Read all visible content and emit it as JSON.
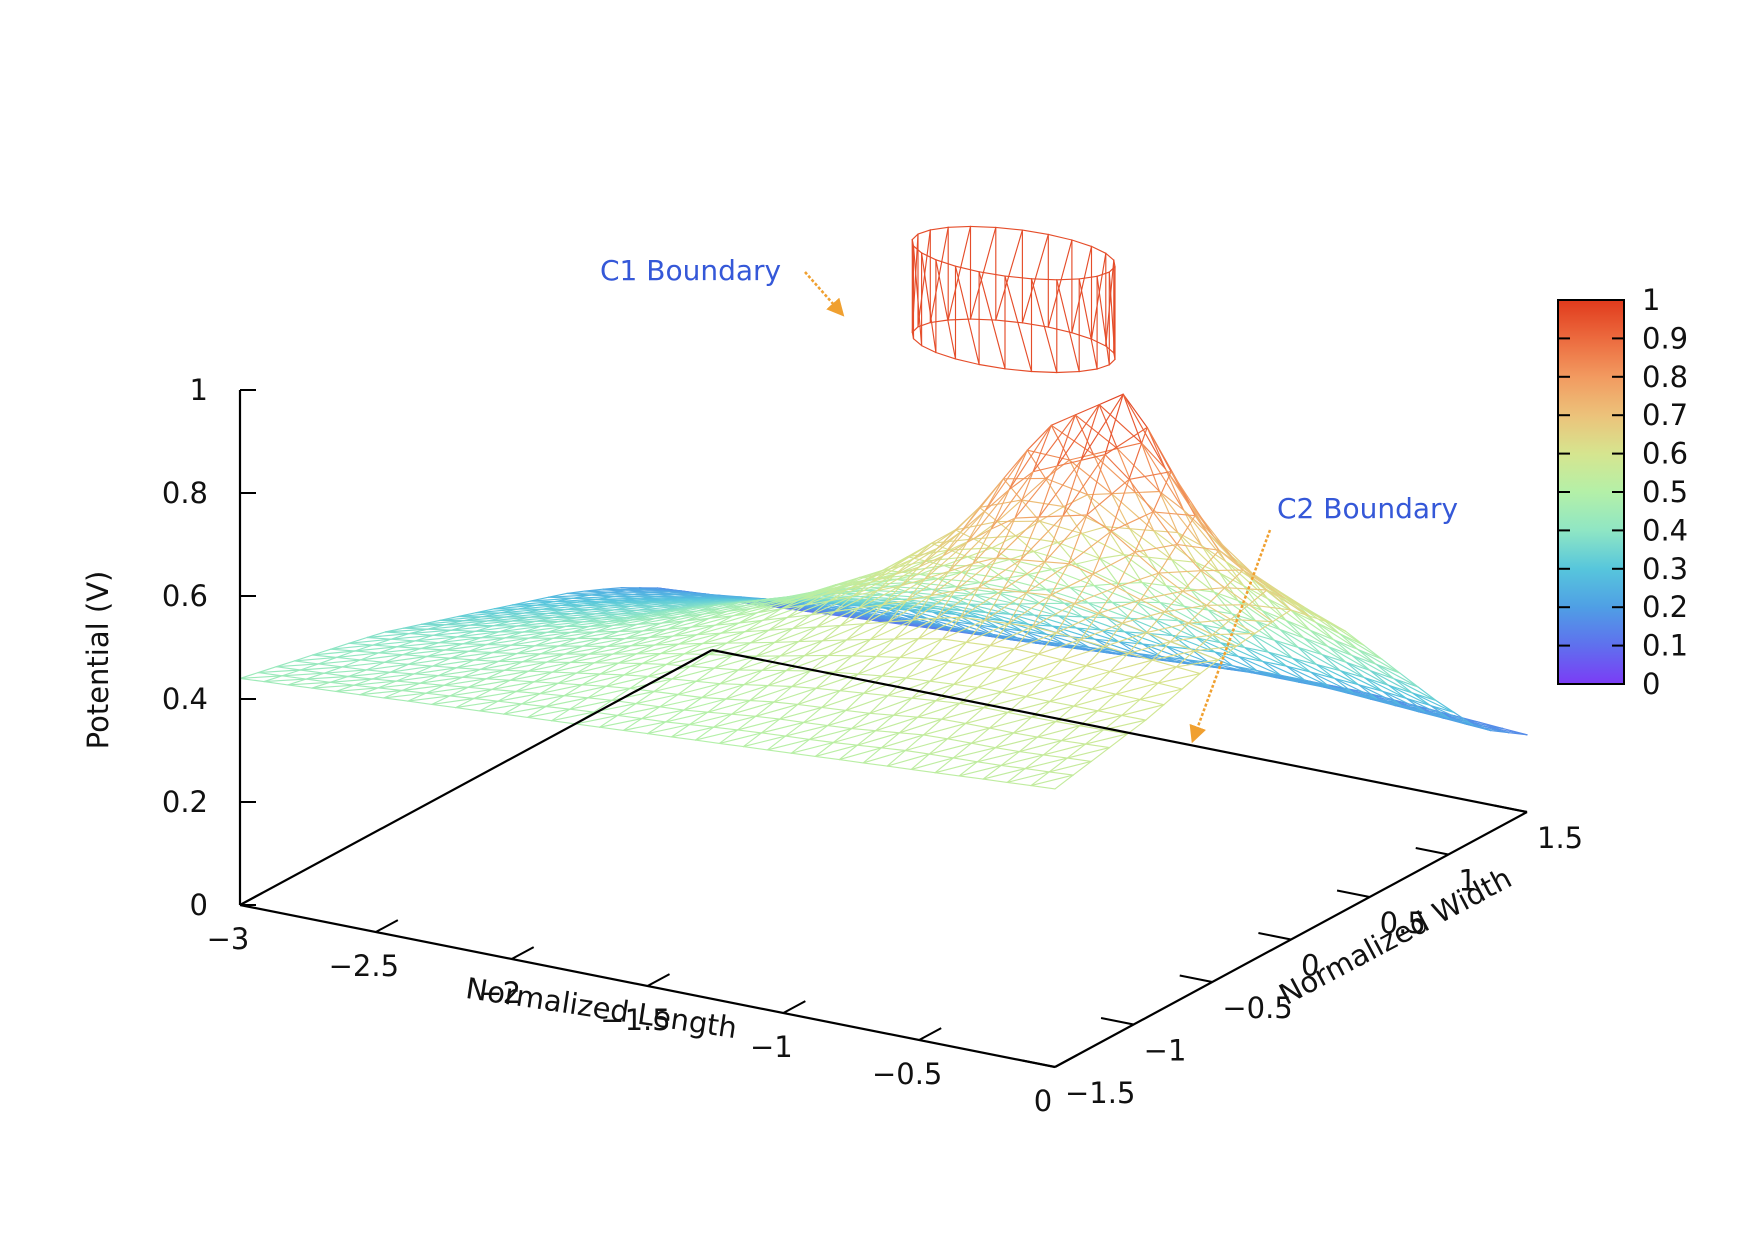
{
  "chart_data": {
    "type": "surface-wireframe",
    "xlabel": "Normalized Length",
    "ylabel": "Normalized Width",
    "zlabel": "Potential (V)",
    "xlim": [
      -3,
      0
    ],
    "ylim": [
      -1.5,
      1.5
    ],
    "zlim": [
      0,
      1
    ],
    "x_ticks": [
      "−3",
      "−2.5",
      "−2",
      "−1.5",
      "−1",
      "−0.5",
      "0"
    ],
    "y_ticks": [
      "−1.5",
      "−1",
      "−0.5",
      "0",
      "0.5",
      "1",
      "1.5"
    ],
    "z_ticks": [
      "0",
      "0.2",
      "0.4",
      "0.6",
      "0.8",
      "1"
    ],
    "colorbar": {
      "range": [
        0,
        1
      ],
      "ticks": [
        "0",
        "0.1",
        "0.2",
        "0.3",
        "0.4",
        "0.5",
        "0.6",
        "0.7",
        "0.8",
        "0.9",
        "1"
      ],
      "palette": [
        "#7b3cf5",
        "#5f70ee",
        "#4f9fe5",
        "#57c6dc",
        "#8fe6c4",
        "#b4f0a8",
        "#d6e58f",
        "#ecc27a",
        "#f29a60",
        "#ec6a3e",
        "#e03a1c"
      ]
    },
    "annotations": [
      {
        "text": "C1  Boundary",
        "target": {
          "x": -1.6,
          "y": 1.0,
          "z": 1.0
        },
        "arrow_color": "#f0a030"
      },
      {
        "text": "C2  Boundary",
        "target": {
          "x": 0.4,
          "y": -0.6,
          "z": 0.25
        },
        "arrow_color": "#f0a030"
      }
    ],
    "surface": {
      "grid_x": [
        -3.0,
        -2.7,
        -2.4,
        -2.1,
        -1.8,
        -1.5,
        -1.2,
        -0.9,
        -0.6,
        -0.3,
        0.0
      ],
      "grid_y": [
        -1.5,
        -1.2,
        -0.9,
        -0.6,
        -0.3,
        0.0,
        0.3,
        0.6,
        0.9,
        1.2,
        1.5
      ],
      "z": [
        [
          0.44,
          0.45,
          0.46,
          0.47,
          0.48,
          0.49,
          0.5,
          0.51,
          0.52,
          0.53,
          0.54
        ],
        [
          0.42,
          0.43,
          0.45,
          0.47,
          0.49,
          0.5,
          0.52,
          0.53,
          0.55,
          0.55,
          0.56
        ],
        [
          0.4,
          0.42,
          0.44,
          0.47,
          0.5,
          0.52,
          0.55,
          0.57,
          0.58,
          0.58,
          0.58
        ],
        [
          0.38,
          0.4,
          0.43,
          0.46,
          0.5,
          0.54,
          0.58,
          0.62,
          0.63,
          0.62,
          0.61
        ],
        [
          0.35,
          0.38,
          0.41,
          0.45,
          0.5,
          0.56,
          0.63,
          0.72,
          0.74,
          0.68,
          0.63
        ],
        [
          0.32,
          0.35,
          0.38,
          0.43,
          0.48,
          0.56,
          0.68,
          0.9,
          1.0,
          0.74,
          0.64
        ],
        [
          0.29,
          0.32,
          0.35,
          0.39,
          0.44,
          0.5,
          0.58,
          0.68,
          0.7,
          0.62,
          0.56
        ],
        [
          0.26,
          0.28,
          0.31,
          0.34,
          0.37,
          0.41,
          0.45,
          0.49,
          0.5,
          0.47,
          0.44
        ],
        [
          0.22,
          0.24,
          0.26,
          0.28,
          0.3,
          0.31,
          0.33,
          0.35,
          0.35,
          0.34,
          0.32
        ],
        [
          0.17,
          0.18,
          0.19,
          0.2,
          0.2,
          0.21,
          0.22,
          0.23,
          0.23,
          0.22,
          0.21
        ],
        [
          0.1,
          0.11,
          0.12,
          0.13,
          0.14,
          0.15,
          0.16,
          0.17,
          0.17,
          0.16,
          0.15
        ]
      ]
    }
  }
}
